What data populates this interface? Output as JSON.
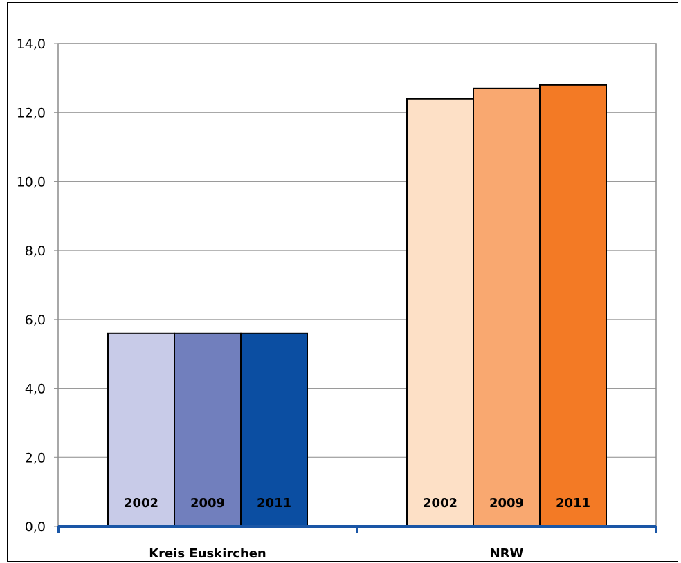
{
  "chart_data": {
    "type": "bar",
    "title": "",
    "xlabel": "",
    "ylabel": "",
    "ylim": [
      0,
      14
    ],
    "yticks": [
      "0,0",
      "2,0",
      "4,0",
      "6,0",
      "8,0",
      "10,0",
      "12,0",
      "14,0"
    ],
    "grid": true,
    "legend": "none",
    "groups": [
      {
        "category": "Kreis Euskirchen",
        "bars": [
          {
            "label": "2002",
            "value": 5.6,
            "color": "#c8cbe8"
          },
          {
            "label": "2009",
            "value": 5.6,
            "color": "#717fbd"
          },
          {
            "label": "2011",
            "value": 5.6,
            "color": "#0b4ea2"
          }
        ]
      },
      {
        "category": "NRW",
        "bars": [
          {
            "label": "2002",
            "value": 12.4,
            "color": "#fde0c6"
          },
          {
            "label": "2009",
            "value": 12.7,
            "color": "#f9a870"
          },
          {
            "label": "2011",
            "value": 12.8,
            "color": "#f37a25"
          }
        ]
      }
    ],
    "axis_color": "#1a56a6"
  }
}
